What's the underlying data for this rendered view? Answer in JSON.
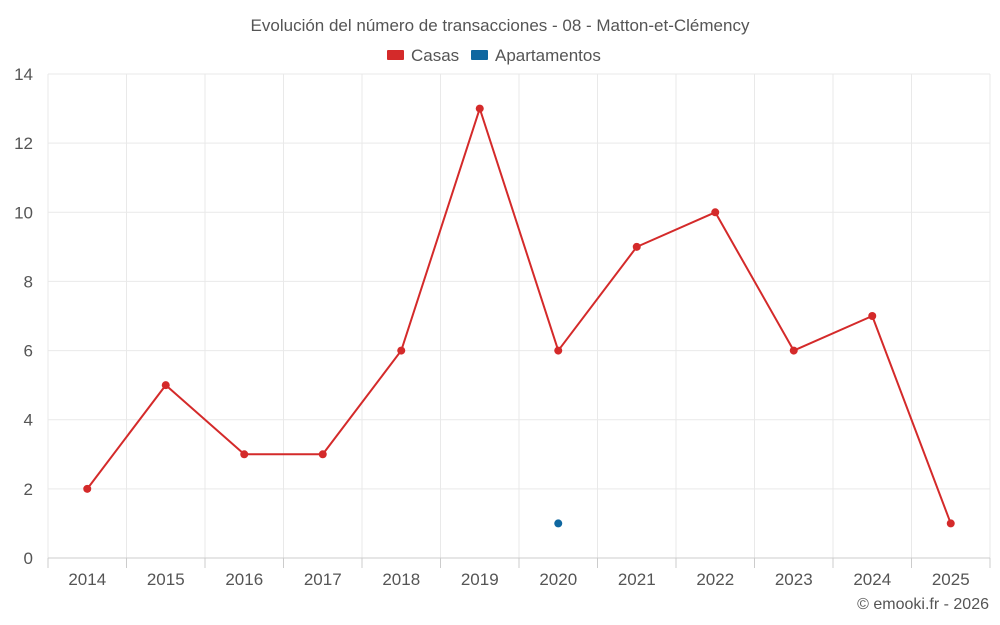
{
  "chart_data": {
    "type": "line",
    "title": "Evolución del número de transacciones - 08 - Matton-et-Clémency",
    "categories": [
      "2014",
      "2015",
      "2016",
      "2017",
      "2018",
      "2019",
      "2020",
      "2021",
      "2022",
      "2023",
      "2024",
      "2025"
    ],
    "series": [
      {
        "name": "Casas",
        "color": "#d42a2a",
        "values": [
          2,
          5,
          3,
          3,
          6,
          13,
          6,
          9,
          10,
          6,
          7,
          1
        ]
      },
      {
        "name": "Apartamentos",
        "color": "#0f67a0",
        "values": [
          null,
          null,
          null,
          null,
          null,
          null,
          1,
          null,
          null,
          null,
          null,
          null
        ]
      }
    ],
    "ylim": [
      0,
      14
    ],
    "yticks": [
      0,
      2,
      4,
      6,
      8,
      10,
      12,
      14
    ],
    "xlabel": "",
    "ylabel": "",
    "grid": true,
    "legend_position": "top-center"
  },
  "credit": "© emooki.fr - 2026"
}
